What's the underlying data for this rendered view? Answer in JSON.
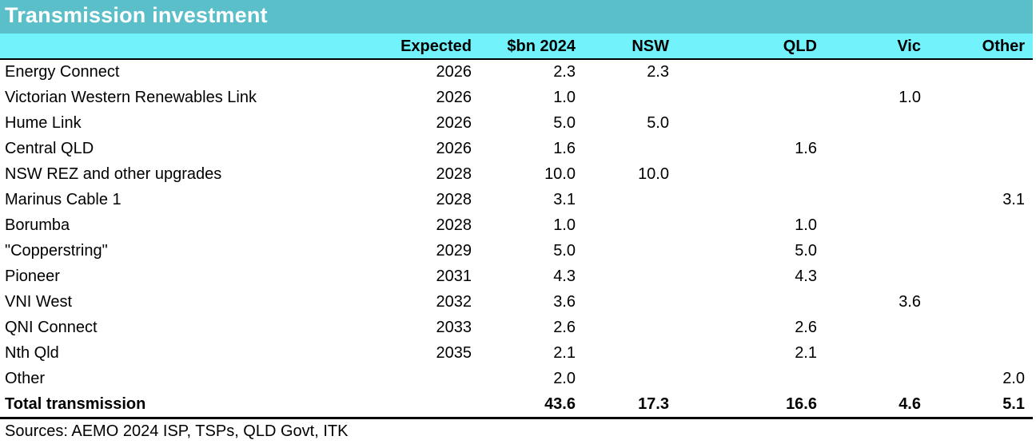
{
  "title": "Transmission investment",
  "headers": {
    "name": "",
    "expected": "Expected",
    "bn": "$bn 2024",
    "nsw": "NSW",
    "qld": "QLD",
    "vic": "Vic",
    "other": "Other"
  },
  "rows": [
    {
      "name": "Energy Connect",
      "expected": "2026",
      "bn": "2.3",
      "nsw": "2.3",
      "qld": "",
      "vic": "",
      "other": ""
    },
    {
      "name": "Victorian Western Renewables Link",
      "expected": "2026",
      "bn": "1.0",
      "nsw": "",
      "qld": "",
      "vic": "1.0",
      "other": ""
    },
    {
      "name": "Hume Link",
      "expected": "2026",
      "bn": "5.0",
      "nsw": "5.0",
      "qld": "",
      "vic": "",
      "other": ""
    },
    {
      "name": "Central QLD",
      "expected": "2026",
      "bn": "1.6",
      "nsw": "",
      "qld": "1.6",
      "vic": "",
      "other": ""
    },
    {
      "name": "NSW REZ and other upgrades",
      "expected": "2028",
      "bn": "10.0",
      "nsw": "10.0",
      "qld": "",
      "vic": "",
      "other": ""
    },
    {
      "name": "Marinus Cable 1",
      "expected": "2028",
      "bn": "3.1",
      "nsw": "",
      "qld": "",
      "vic": "",
      "other": "3.1"
    },
    {
      "name": "Borumba",
      "expected": "2028",
      "bn": "1.0",
      "nsw": "",
      "qld": "1.0",
      "vic": "",
      "other": ""
    },
    {
      "name": "\"Copperstring\"",
      "expected": "2029",
      "bn": "5.0",
      "nsw": "",
      "qld": "5.0",
      "vic": "",
      "other": ""
    },
    {
      "name": "Pioneer",
      "expected": "2031",
      "bn": "4.3",
      "nsw": "",
      "qld": "4.3",
      "vic": "",
      "other": ""
    },
    {
      "name": "VNI West",
      "expected": "2032",
      "bn": "3.6",
      "nsw": "",
      "qld": "",
      "vic": "3.6",
      "other": ""
    },
    {
      "name": "QNI Connect",
      "expected": "2033",
      "bn": "2.6",
      "nsw": "",
      "qld": "2.6",
      "vic": "",
      "other": ""
    },
    {
      "name": "Nth Qld",
      "expected": "2035",
      "bn": "2.1",
      "nsw": "",
      "qld": "2.1",
      "vic": "",
      "other": ""
    },
    {
      "name": "Other",
      "expected": "",
      "bn": "2.0",
      "nsw": "",
      "qld": "",
      "vic": "",
      "other": "2.0"
    }
  ],
  "total": {
    "name": "Total transmission",
    "expected": "",
    "bn": "43.6",
    "nsw": "17.3",
    "qld": "16.6",
    "vic": "4.6",
    "other": "5.1"
  },
  "source": "Sources: AEMO 2024 ISP, TSPs, QLD Govt, ITK",
  "colors": {
    "title_bg": "#5bbfca",
    "header_bg": "#72f2fb",
    "title_text": "#ffffff"
  }
}
